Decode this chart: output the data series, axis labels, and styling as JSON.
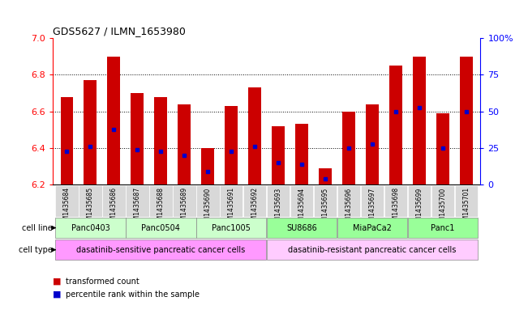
{
  "title": "GDS5627 / ILMN_1653980",
  "samples": [
    "GSM1435684",
    "GSM1435685",
    "GSM1435686",
    "GSM1435687",
    "GSM1435688",
    "GSM1435689",
    "GSM1435690",
    "GSM1435691",
    "GSM1435692",
    "GSM1435693",
    "GSM1435694",
    "GSM1435695",
    "GSM1435696",
    "GSM1435697",
    "GSM1435698",
    "GSM1435699",
    "GSM1435700",
    "GSM1435701"
  ],
  "bar_heights": [
    6.68,
    6.77,
    6.9,
    6.7,
    6.68,
    6.64,
    6.4,
    6.63,
    6.73,
    6.52,
    6.53,
    6.29,
    6.6,
    6.64,
    6.85,
    6.9,
    6.59,
    6.9
  ],
  "blue_dots": [
    6.38,
    6.41,
    6.5,
    6.39,
    6.38,
    6.36,
    6.27,
    6.38,
    6.41,
    6.32,
    6.31,
    6.23,
    6.4,
    6.42,
    6.6,
    6.62,
    6.4,
    6.6
  ],
  "ylim_left": [
    6.2,
    7.0
  ],
  "ylim_right": [
    0,
    100
  ],
  "yticks_left": [
    6.2,
    6.4,
    6.6,
    6.8,
    7.0
  ],
  "yticks_right": [
    0,
    25,
    50,
    75,
    100
  ],
  "ytick_labels_right": [
    "0",
    "25",
    "50",
    "75",
    "100%"
  ],
  "bar_color": "#cc0000",
  "dot_color": "#0000cc",
  "cell_lines": [
    {
      "name": "Panc0403",
      "start": 0,
      "end": 2,
      "color": "#ccffcc"
    },
    {
      "name": "Panc0504",
      "start": 3,
      "end": 5,
      "color": "#ccffcc"
    },
    {
      "name": "Panc1005",
      "start": 6,
      "end": 8,
      "color": "#ccffcc"
    },
    {
      "name": "SU8686",
      "start": 9,
      "end": 11,
      "color": "#99ff99"
    },
    {
      "name": "MiaPaCa2",
      "start": 12,
      "end": 14,
      "color": "#99ff99"
    },
    {
      "name": "Panc1",
      "start": 15,
      "end": 17,
      "color": "#99ff99"
    }
  ],
  "cell_types": [
    {
      "name": "dasatinib-sensitive pancreatic cancer cells",
      "start": 0,
      "end": 8,
      "color": "#ff99ff"
    },
    {
      "name": "dasatinib-resistant pancreatic cancer cells",
      "start": 9,
      "end": 17,
      "color": "#ffccff"
    }
  ],
  "legend_items": [
    {
      "label": "transformed count",
      "color": "#cc0000"
    },
    {
      "label": "percentile rank within the sample",
      "color": "#0000cc"
    }
  ],
  "grid_color": "black",
  "background_color": "white",
  "bar_width": 0.55,
  "n_samples": 18
}
